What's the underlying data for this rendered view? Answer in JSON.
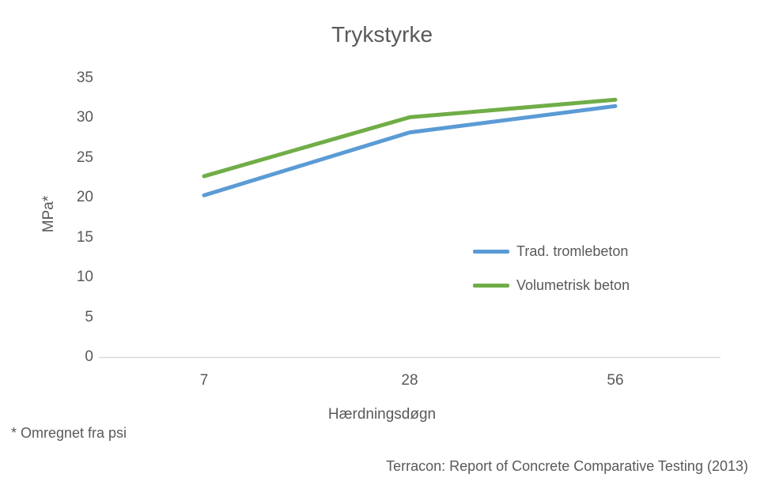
{
  "chart_data": {
    "type": "line",
    "title": "Trykstyrke",
    "xlabel": "Hærdningsdøgn",
    "ylabel": "MPa*",
    "categories": [
      "7",
      "28",
      "56"
    ],
    "series": [
      {
        "name": "Trad. tromlebeton",
        "color": "#5b9bd5",
        "values": [
          20.3,
          28.2,
          31.5
        ]
      },
      {
        "name": "Volumetrisk beton",
        "color": "#70ad47",
        "values": [
          22.7,
          30.1,
          32.3
        ]
      }
    ],
    "ylim": [
      0,
      35
    ],
    "yticks": [
      0,
      5,
      10,
      15,
      20,
      25,
      30,
      35
    ],
    "grid": false,
    "legend_position": "middle-right",
    "axis_line_color": "#d9d9d9"
  },
  "footnote": "* Omregnet fra psi",
  "source": "Terracon: Report of Concrete Comparative Testing (2013)"
}
